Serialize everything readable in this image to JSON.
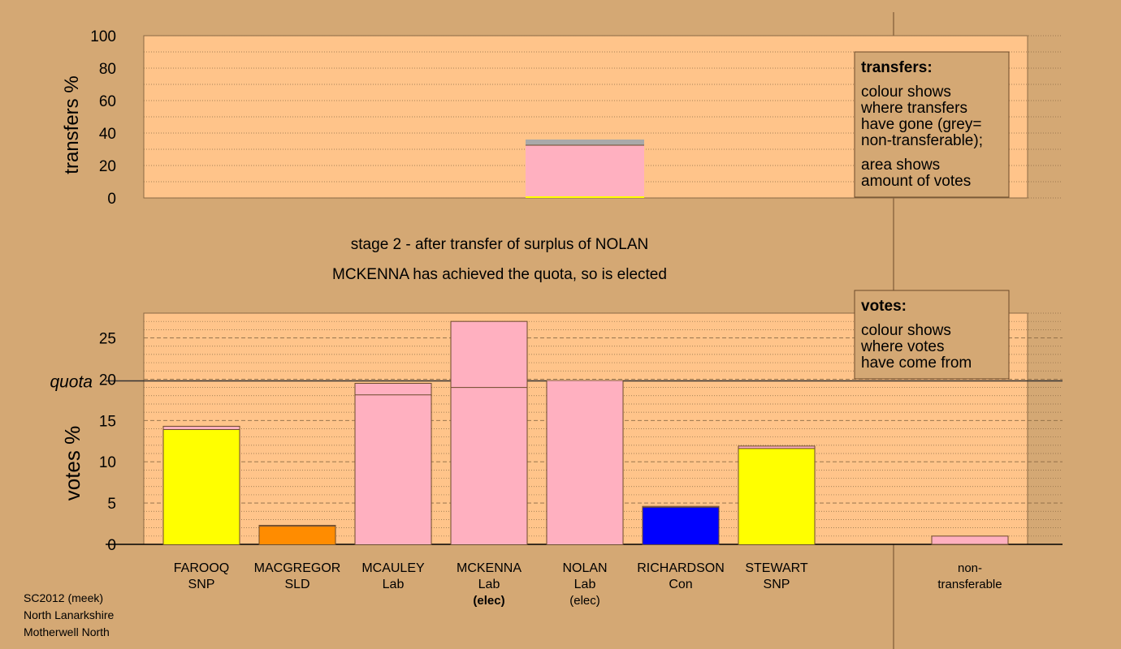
{
  "colors": {
    "background": "#d4a874",
    "plot_bg": "#ffc48a",
    "SNP": "#ffff00",
    "SLD": "#ff8c00",
    "Lab": "#ffb0c0",
    "Con": "#0000ff",
    "non_transferable": "#a9a9a9"
  },
  "stage_title": "stage 2 - after transfer of surplus of NOLAN",
  "stage_subtitle": "MCKENNA has achieved the quota, so is elected",
  "footer": {
    "line1": "SC2012 (meek)",
    "line2": "North Lanarkshire",
    "line3": "Motherwell North"
  },
  "legend_transfers": {
    "heading": "transfers:",
    "lines": [
      "colour shows",
      "where transfers",
      "have gone (grey=",
      "non-transferable);"
    ],
    "lines2": [
      "area shows",
      "amount of votes"
    ]
  },
  "legend_votes": {
    "heading": "votes:",
    "lines": [
      "colour shows",
      "where votes",
      "have come from"
    ]
  },
  "chart_data": [
    {
      "type": "bar",
      "name": "transfers",
      "ylabel": "transfers %",
      "ylim": [
        0,
        100
      ],
      "yticks": [
        0,
        20,
        40,
        60,
        80,
        100
      ],
      "bars": [
        {
          "category": "NOLAN",
          "segments": [
            {
              "party": "SNP",
              "value": 1.0
            },
            {
              "party": "Lab",
              "value": 31.5
            },
            {
              "party": "non_transferable",
              "value": 3.5
            }
          ]
        }
      ]
    },
    {
      "type": "bar",
      "name": "votes",
      "ylabel": "votes %",
      "ylim": [
        0,
        28
      ],
      "yticks": [
        0,
        5,
        10,
        15,
        20,
        25
      ],
      "quota_label": "quota",
      "quota": 19.8,
      "categories": [
        {
          "name": "FAROOQ",
          "party": "SNP",
          "status": ""
        },
        {
          "name": "MACGREGOR",
          "party": "SLD",
          "status": ""
        },
        {
          "name": "MCAULEY",
          "party": "Lab",
          "status": ""
        },
        {
          "name": "MCKENNA",
          "party": "Lab",
          "status": "(elec)"
        },
        {
          "name": "NOLAN",
          "party": "Lab",
          "status": "(elec)"
        },
        {
          "name": "RICHARDSON",
          "party": "Con",
          "status": ""
        },
        {
          "name": "STEWART",
          "party": "SNP",
          "status": ""
        }
      ],
      "non_transferable": {
        "line1": "non-",
        "line2": "transferable",
        "value": 1.0,
        "party": "Lab"
      },
      "bars": [
        {
          "base": 13.9,
          "base_party": "SNP",
          "added": 0.4,
          "added_party": "Lab"
        },
        {
          "base": 2.2,
          "base_party": "SLD",
          "added": 0.1,
          "added_party": "Lab"
        },
        {
          "base": 18.1,
          "base_party": "Lab",
          "added": 1.4,
          "added_party": "Lab"
        },
        {
          "base": 19.0,
          "base_party": "Lab",
          "added": 8.0,
          "added_party": "Lab"
        },
        {
          "base": 19.8,
          "base_party": "Lab",
          "added": 0,
          "added_party": "Lab"
        },
        {
          "base": 4.5,
          "base_party": "Con",
          "added": 0.1,
          "added_party": "Lab"
        },
        {
          "base": 11.6,
          "base_party": "SNP",
          "added": 0.3,
          "added_party": "Lab"
        }
      ]
    }
  ]
}
